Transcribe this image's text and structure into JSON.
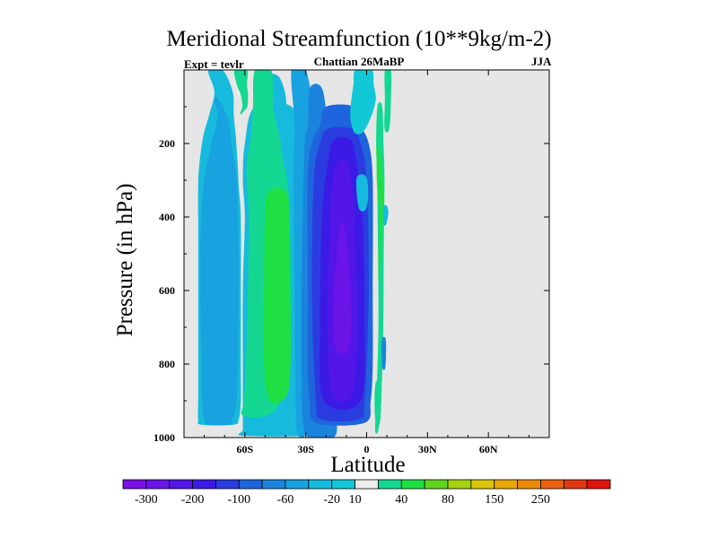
{
  "chart_data": {
    "type": "heatmap",
    "title": "Meridional Streamfunction (10**9kg/m-2)",
    "subtitle_left": "Expt = tevlr",
    "subtitle_center": "Chattian  26MaBP",
    "subtitle_right": "JJA",
    "xlabel": "Latitude",
    "ylabel": "Pressure (in hPa)",
    "xlim": [
      -90,
      90
    ],
    "ylim": [
      1000,
      0
    ],
    "xticks": [
      {
        "value": -60,
        "label": "60S"
      },
      {
        "value": -30,
        "label": "30S"
      },
      {
        "value": 0,
        "label": "0"
      },
      {
        "value": 30,
        "label": "30N"
      },
      {
        "value": 60,
        "label": "60N"
      }
    ],
    "yticks": [
      {
        "value": 200,
        "label": "200"
      },
      {
        "value": 400,
        "label": "400"
      },
      {
        "value": 600,
        "label": "600"
      },
      {
        "value": 800,
        "label": "800"
      },
      {
        "value": 1000,
        "label": "1000"
      }
    ],
    "background_color": "#e6e6e6",
    "colorbar": {
      "colors": [
        "#7a10e4",
        "#6a14e8",
        "#5416e8",
        "#3c1ae6",
        "#2a3ce0",
        "#1e64dc",
        "#1a84dc",
        "#18a2e0",
        "#16badc",
        "#12c8d6",
        "#ececec",
        "#14d892",
        "#1ee042",
        "#60d41e",
        "#a4d20e",
        "#dcc608",
        "#e8a806",
        "#ec8a08",
        "#ea6010",
        "#e23812",
        "#e0140c"
      ],
      "labels": [
        "-300",
        "-200",
        "-100",
        "-60",
        "-20",
        "10",
        "40",
        "80",
        "150",
        "250"
      ],
      "label_after_box": [
        1,
        3,
        5,
        7,
        9,
        10,
        12,
        14,
        16,
        18
      ]
    },
    "features": [
      {
        "kind": "band",
        "level": 12,
        "lat": [
          -78.5,
          -81.5
        ],
        "p": [
          0,
          20,
          100,
          200,
          250,
          300,
          420,
          600,
          800,
          900,
          950,
          965
        ],
        "w": [
          2.8,
          2.5,
          1.5,
          1.2,
          1.0,
          0.8,
          0.4,
          0.3,
          0.2,
          0.2,
          0.1,
          0.1
        ]
      },
      {
        "kind": "band",
        "level": 8,
        "lat": [
          -74.5,
          -70.5,
          -71.5,
          -72.5,
          -73,
          -73,
          -72.5,
          -72.5,
          -72.5,
          -72.5,
          -73,
          -73.5
        ],
        "p": [
          0,
          60,
          120,
          180,
          260,
          320,
          400,
          600,
          800,
          900,
          950,
          965
        ],
        "w": [
          3.5,
          4.5,
          6,
          8,
          9.5,
          10,
          10.5,
          10.5,
          10.5,
          10.5,
          10,
          8
        ]
      },
      {
        "kind": "band",
        "level": 7,
        "lat": [
          -74,
          -71,
          -71.5,
          -72,
          -72.5,
          -72.5,
          -72.5,
          -72.5,
          -72.5,
          -73,
          -73
        ],
        "p": [
          80,
          130,
          200,
          300,
          400,
          500,
          600,
          800,
          900,
          950,
          965
        ],
        "w": [
          1,
          2.5,
          5,
          8,
          9,
          9.5,
          9.5,
          9,
          8.5,
          7,
          5
        ]
      },
      {
        "kind": "band",
        "level": 10,
        "lat": [
          -62,
          -62,
          -62
        ],
        "p": [
          0,
          40,
          70
        ],
        "w": [
          3,
          2.5,
          1.5
        ]
      },
      {
        "kind": "band",
        "level": 11,
        "lat": [
          -62,
          -61.5,
          -60.5,
          -60,
          -60,
          -61,
          -62
        ],
        "p": [
          0,
          40,
          60,
          80,
          100,
          110,
          120
        ],
        "w": [
          3,
          2.5,
          2,
          1.5,
          1.2,
          0.8,
          0.3
        ]
      },
      {
        "kind": "band",
        "level": 8,
        "lat": [
          -47,
          -46
        ],
        "p": [
          20,
          100
        ],
        "w": [
          4,
          6
        ]
      },
      {
        "kind": "band",
        "level": 8,
        "lat": [
          -46,
          -46,
          -46,
          -46,
          -46,
          -46,
          -46,
          -46,
          -46,
          -46
        ],
        "p": [
          100,
          200,
          300,
          400,
          600,
          800,
          900,
          950,
          980,
          995
        ],
        "w": [
          9,
          14,
          15,
          14,
          15,
          15,
          15,
          15,
          15,
          15
        ]
      },
      {
        "kind": "band",
        "level": 11,
        "lat": [
          -51,
          -51,
          -50,
          -50,
          -49,
          -48,
          -48.5,
          -49.5,
          -51.5,
          -55
        ],
        "p": [
          0,
          100,
          180,
          250,
          300,
          400,
          600,
          800,
          900,
          940
        ],
        "w": [
          4,
          5,
          7,
          9,
          10,
          10,
          10,
          10,
          9,
          6
        ]
      },
      {
        "kind": "band",
        "level": 12,
        "lat": [
          -44,
          -44,
          -44,
          -44,
          -44,
          -45
        ],
        "p": [
          330,
          400,
          600,
          800,
          880,
          905
        ],
        "w": [
          4,
          6,
          6.5,
          6.5,
          5,
          1.5
        ]
      },
      {
        "kind": "band",
        "level": 7,
        "lat": [
          -33.5,
          -30.5,
          -31,
          -31,
          -31.5,
          -32
        ],
        "p": [
          0,
          150,
          300,
          600,
          900,
          990
        ],
        "w": [
          3.5,
          5,
          5,
          4.5,
          3.5,
          2
        ]
      },
      {
        "kind": "band",
        "level": 6,
        "lat": [
          -25,
          -24,
          -23.5,
          -23.5,
          -23.5,
          -23.5,
          -23,
          -22.5
        ],
        "p": [
          50,
          150,
          200,
          400,
          600,
          800,
          950,
          1000
        ],
        "w": [
          3,
          5,
          7,
          8,
          8.5,
          8.5,
          8.5,
          6
        ]
      },
      {
        "kind": "band",
        "level": 5,
        "lat": [
          -13,
          -13,
          -13,
          -13,
          -13,
          -13,
          -13,
          -13
        ],
        "p": [
          100,
          150,
          200,
          300,
          600,
          800,
          900,
          960
        ],
        "w": [
          7,
          10,
          14,
          16,
          16,
          16,
          15,
          12
        ]
      },
      {
        "kind": "band",
        "level": 4,
        "lat": [
          -13,
          -13,
          -13,
          -13,
          -13,
          -13
        ],
        "p": [
          160,
          200,
          300,
          600,
          900,
          950
        ],
        "w": [
          6,
          10,
          13,
          14,
          12,
          9
        ]
      },
      {
        "kind": "band",
        "level": 3,
        "lat": [
          -12,
          -12,
          -12,
          -12,
          -12
        ],
        "p": [
          190,
          250,
          400,
          700,
          900
        ],
        "w": [
          4,
          7,
          10,
          11,
          9
        ]
      },
      {
        "kind": "band",
        "level": 2,
        "lat": [
          -12,
          -12,
          -12,
          -12
        ],
        "p": [
          260,
          400,
          700,
          880
        ],
        "w": [
          3,
          6,
          7,
          5
        ]
      },
      {
        "kind": "band",
        "level": 1,
        "lat": [
          -12,
          -12,
          -12
        ],
        "p": [
          440,
          650,
          760
        ],
        "w": [
          1.5,
          4.5,
          3
        ]
      },
      {
        "kind": "band",
        "level": 9,
        "lat": [
          -1.5,
          -1.5,
          -1.5,
          -3,
          -4
        ],
        "p": [
          0,
          40,
          80,
          130,
          170
        ],
        "w": [
          4,
          5,
          6,
          5,
          2
        ]
      },
      {
        "kind": "band",
        "level": 11,
        "lat": [
          6.5,
          6.5,
          7,
          7,
          7,
          6,
          5
        ],
        "p": [
          100,
          200,
          300,
          500,
          700,
          900,
          980
        ],
        "w": [
          1.2,
          1.8,
          1.8,
          1.4,
          1.2,
          1.2,
          0.8
        ]
      },
      {
        "kind": "band",
        "level": 12,
        "lat": [
          5.5,
          6,
          6.5,
          7,
          7,
          6
        ],
        "p": [
          210,
          240,
          300,
          360,
          420,
          550
        ],
        "w": [
          0.6,
          1.0,
          1.5,
          1.2,
          0.8,
          0.3
        ]
      },
      {
        "kind": "band",
        "level": 11,
        "lat": [
          5.5,
          5.5,
          5.5
        ],
        "p": [
          850,
          900,
          960
        ],
        "w": [
          1,
          1.6,
          1
        ]
      },
      {
        "kind": "band",
        "level": 11,
        "lat": [
          10.5,
          10.5,
          10
        ],
        "p": [
          0,
          80,
          160
        ],
        "w": [
          1.5,
          1.5,
          1.2
        ]
      },
      {
        "kind": "band",
        "level": 8,
        "lat": [
          -2.5,
          -2,
          -2
        ],
        "p": [
          290,
          340,
          380
        ],
        "w": [
          2.2,
          2.8,
          1.5
        ]
      },
      {
        "kind": "band",
        "level": 8,
        "lat": [
          9,
          9.5,
          9
        ],
        "p": [
          370,
          390,
          420
        ],
        "w": [
          1.0,
          1.2,
          0.6
        ]
      },
      {
        "kind": "band",
        "level": 6,
        "lat": [
          8.5,
          8.5,
          8.5
        ],
        "p": [
          730,
          760,
          810
        ],
        "w": [
          0.8,
          1.1,
          0.7
        ]
      }
    ]
  }
}
